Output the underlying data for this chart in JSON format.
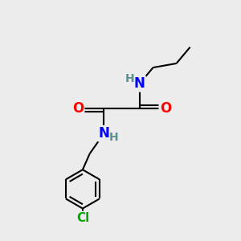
{
  "bg_color": "#ececec",
  "atom_colors": {
    "C": "#000000",
    "H": "#5a9090",
    "N": "#0000FF",
    "O": "#FF0000",
    "Cl": "#00AA00"
  },
  "bond_color": "#000000",
  "bond_width": 1.5,
  "font_size_N": 12,
  "font_size_O": 12,
  "font_size_H": 10,
  "font_size_Cl": 11
}
